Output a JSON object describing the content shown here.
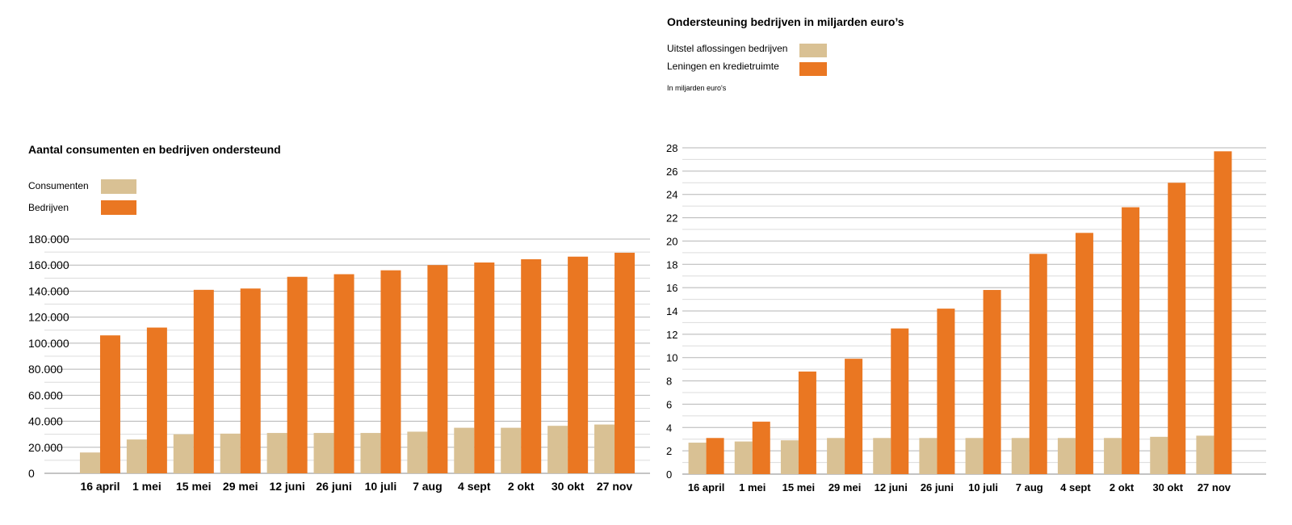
{
  "colors": {
    "light": "#d9c194",
    "orange": "#ea7722",
    "grid": "#b5b5b5",
    "axis": "#888888"
  },
  "chart_data": [
    {
      "type": "bar",
      "title": "Aantal consumenten en bedrijven ondersteund",
      "categories": [
        "16 april",
        "1 mei",
        "15 mei",
        "29 mei",
        "12 juni",
        "26 juni",
        "10 juli",
        "7 aug",
        "4 sept",
        "2 okt",
        "30 okt",
        "27 nov"
      ],
      "series": [
        {
          "name": "Consumenten",
          "color": "#d9c194",
          "values": [
            16000,
            26000,
            30000,
            30500,
            31000,
            31000,
            31000,
            32000,
            35000,
            35000,
            36500,
            37500
          ]
        },
        {
          "name": "Bedrijven",
          "color": "#ea7722",
          "values": [
            106000,
            112000,
            141000,
            142000,
            151000,
            153000,
            156000,
            160000,
            162000,
            164500,
            166500,
            169500
          ]
        }
      ],
      "yticks": [
        "0",
        "20.000",
        "40.000",
        "60.000",
        "80.000",
        "100.000",
        "120.000",
        "140.000",
        "160.000",
        "180.000"
      ],
      "ylim": [
        0,
        180000
      ],
      "grid": true,
      "legend": "top-left"
    },
    {
      "type": "bar",
      "title": "Ondersteuning bedrijven in miljarden euro’s",
      "note": "In miljarden euro's",
      "categories": [
        "16 april",
        "1 mei",
        "15 mei",
        "29 mei",
        "12 juni",
        "26 juni",
        "10 juli",
        "7 aug",
        "4 sept",
        "2 okt",
        "30 okt",
        "27 nov"
      ],
      "series": [
        {
          "name": "Uitstel aflossingen bedrijven",
          "color": "#d9c194",
          "values": [
            2.7,
            2.8,
            2.9,
            3.1,
            3.1,
            3.1,
            3.1,
            3.1,
            3.1,
            3.1,
            3.2,
            3.3
          ]
        },
        {
          "name": "Leningen en kredietruimte",
          "color": "#ea7722",
          "values": [
            3.1,
            4.5,
            8.8,
            9.9,
            12.5,
            14.2,
            15.8,
            18.9,
            20.7,
            22.9,
            25.0,
            27.7
          ]
        }
      ],
      "yticks": [
        "0",
        "2",
        "4",
        "6",
        "8",
        "10",
        "12",
        "14",
        "16",
        "18",
        "20",
        "22",
        "24",
        "26",
        "28"
      ],
      "ylim": [
        0,
        28
      ],
      "grid": true,
      "legend": "top-left"
    }
  ]
}
